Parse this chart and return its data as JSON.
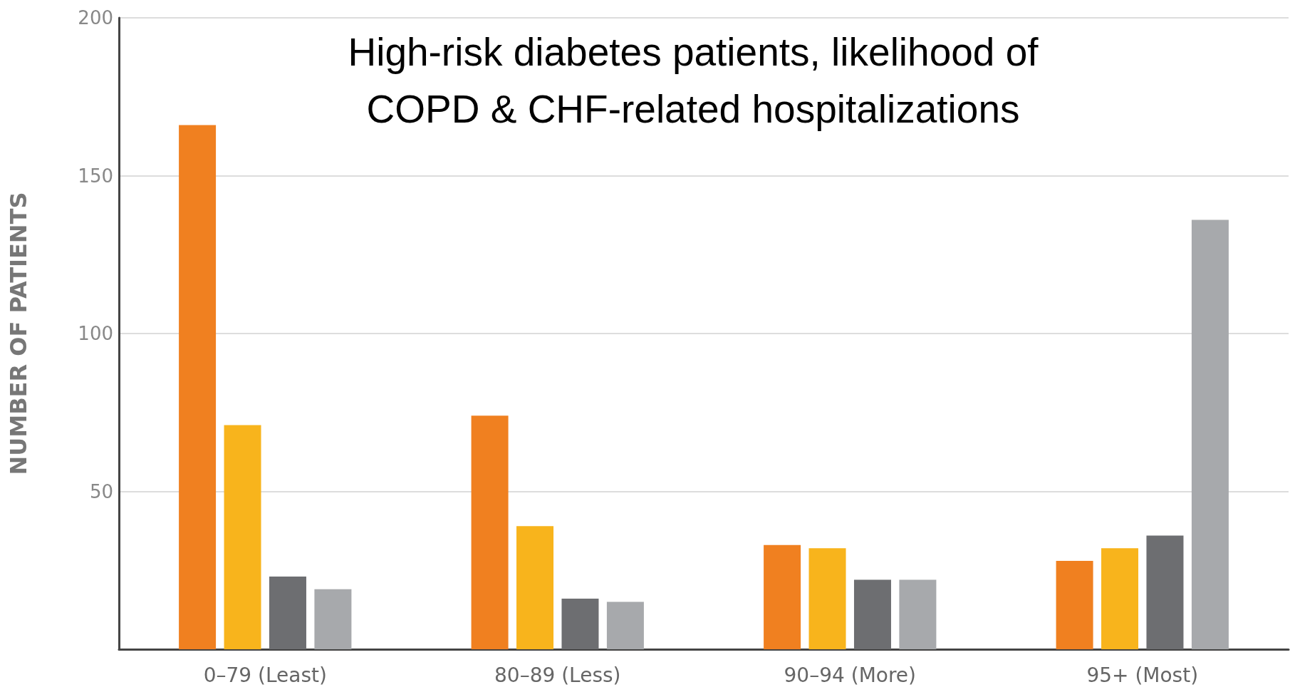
{
  "chart_data": {
    "type": "bar",
    "title": "High-risk diabetes patients, likelihood of\nCOPD & CHF-related hospitalizations",
    "ylabel": "NUMBER OF PATIENTS",
    "categories": [
      "0–79 (Least)",
      "80–89 (Less)",
      "90–94 (More)",
      "95+ (Most)"
    ],
    "series": [
      {
        "color": "#f08020",
        "values": [
          166,
          74,
          33,
          28
        ]
      },
      {
        "color": "#f8b41c",
        "values": [
          71,
          39,
          32,
          32
        ]
      },
      {
        "color": "#6d6e71",
        "values": [
          23,
          16,
          22,
          36
        ]
      },
      {
        "color": "#a7a9ac",
        "values": [
          19,
          15,
          22,
          136
        ]
      }
    ],
    "ylim": [
      0,
      200
    ],
    "yticks": [
      50,
      100,
      150,
      200
    ],
    "grid": "y"
  }
}
